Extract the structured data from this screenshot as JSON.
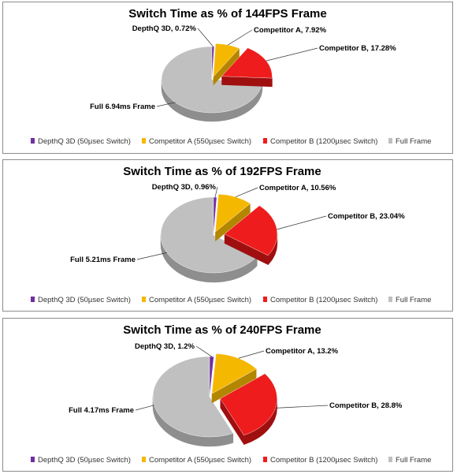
{
  "chart_data": [
    {
      "type": "pie",
      "title": "Switch Time as % of 144FPS Frame",
      "slices": [
        {
          "name": "DepthQ 3D (50µsec Switch)",
          "value": 0.72,
          "label": "DepthQ 3D, 0.72%",
          "color": "#7030a0",
          "side": "#4b1f6e"
        },
        {
          "name": "Competitor A (550µsec Switch)",
          "value": 7.92,
          "label": "Competitor A, 7.92%",
          "color": "#f5b800",
          "side": "#b38600"
        },
        {
          "name": "Competitor B (1200µsec Switch)",
          "value": 17.28,
          "label": "Competitor B, 17.28%",
          "color": "#ee1c1c",
          "side": "#a00f0f"
        },
        {
          "name": "Full Frame",
          "value": 74.08,
          "label": "Full 6.94ms Frame",
          "color": "#c0c0c0",
          "side": "#8e8e8e"
        }
      ],
      "legend_position": "bottom"
    },
    {
      "type": "pie",
      "title": "Switch Time as % of 192FPS Frame",
      "slices": [
        {
          "name": "DepthQ 3D (50µsec Switch)",
          "value": 0.96,
          "label": "DepthQ 3D, 0.96%",
          "color": "#7030a0",
          "side": "#4b1f6e"
        },
        {
          "name": "Competitor A (550µsec Switch)",
          "value": 10.56,
          "label": "Competitor A, 10.56%",
          "color": "#f5b800",
          "side": "#b38600"
        },
        {
          "name": "Competitor B (1200µsec Switch)",
          "value": 23.04,
          "label": "Competitor B, 23.04%",
          "color": "#ee1c1c",
          "side": "#a00f0f"
        },
        {
          "name": "Full Frame",
          "value": 65.44,
          "label": "Full 5.21ms Frame",
          "color": "#c0c0c0",
          "side": "#8e8e8e"
        }
      ],
      "legend_position": "bottom"
    },
    {
      "type": "pie",
      "title": "Switch Time as % of 240FPS Frame",
      "slices": [
        {
          "name": "DepthQ 3D (50µsec Switch)",
          "value": 1.2,
          "label": "DepthQ 3D, 1.2%",
          "color": "#7030a0",
          "side": "#4b1f6e"
        },
        {
          "name": "Competitor A (550µsec Switch)",
          "value": 13.2,
          "label": "Competitor A, 13.2%",
          "color": "#f5b800",
          "side": "#b38600"
        },
        {
          "name": "Competitor B (1200µsec Switch)",
          "value": 28.8,
          "label": "Competitor B, 28.8%",
          "color": "#ee1c1c",
          "side": "#a00f0f"
        },
        {
          "name": "Full Frame",
          "value": 56.8,
          "label": "Full 4.17ms Frame",
          "color": "#c0c0c0",
          "side": "#8e8e8e"
        }
      ],
      "legend_position": "bottom"
    }
  ]
}
